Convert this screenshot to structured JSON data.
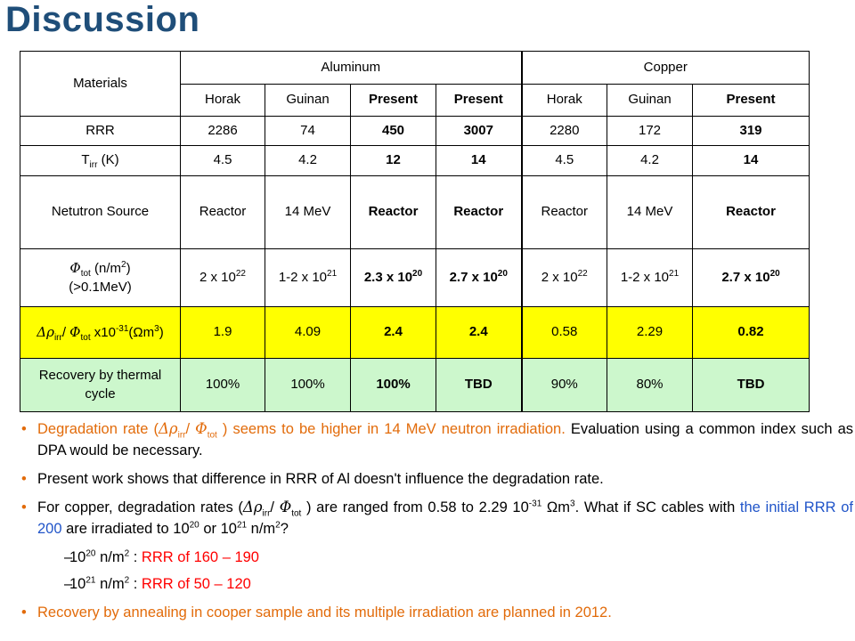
{
  "title": "Discussion",
  "table": {
    "materials": "Materials",
    "aluminum": "Aluminum",
    "copper": "Copper",
    "sub_headers": [
      "Horak",
      "Guinan",
      "Present",
      "Present",
      "Horak",
      "Guinan",
      "Present"
    ],
    "rrr_label": "RRR",
    "rrr": [
      "2286",
      "74",
      "450",
      "3007",
      "2280",
      "172",
      "319"
    ],
    "tirr_label_pre": "T",
    "tirr_label_sub": "irr",
    "tirr_label_post": " (K)",
    "tirr": [
      "4.5",
      "4.2",
      "12",
      "14",
      "4.5",
      "4.2",
      "14"
    ],
    "source_label": "Netutron Source",
    "source": [
      "Reactor",
      "14 MeV",
      "Reactor",
      "Reactor",
      "Reactor",
      "14 MeV",
      "Reactor"
    ],
    "phi_label_phi": "Φ",
    "phi_label_sub": "tot",
    "phi_label_mid": " (n/m",
    "phi_label_sup": "2",
    "phi_label_end": ")",
    "phi_label_line2": "(>0.1MeV)",
    "phi": [
      {
        "base": "2 x 10",
        "exp": "22"
      },
      {
        "base": "1-2 x 10",
        "exp": "21"
      },
      {
        "base": "2.3 x 10",
        "exp": "20"
      },
      {
        "base": "2.7 x 10",
        "exp": "20"
      },
      {
        "base": "2 x 10",
        "exp": "22"
      },
      {
        "base": "1-2 x 10",
        "exp": "21"
      },
      {
        "base": "2.7 x 10",
        "exp": "20"
      }
    ],
    "rate_label_drho": "Δρ",
    "rate_label_sub1": "irr",
    "rate_label_slash": "/ ",
    "rate_label_phi": "Φ",
    "rate_label_sub2": "tot",
    "rate_label_x": " x10",
    "rate_label_sup": "-31",
    "rate_label_unit": "(Ωm",
    "rate_label_sup2": "3",
    "rate_label_close": ")",
    "rate": [
      "1.9",
      "4.09",
      "2.4",
      "2.4",
      "0.58",
      "2.29",
      "0.82"
    ],
    "recovery_label": "Recovery by thermal cycle",
    "recovery": [
      "100%",
      "100%",
      "100%",
      "TBD",
      "90%",
      "80%",
      "TBD"
    ]
  },
  "bullets": {
    "b1_pre": "Degradation rate (",
    "b1_drho": "Δρ",
    "b1_sub1": "irr",
    "b1_slash": "/ ",
    "b1_phi": "Φ",
    "b1_sub2": "tot",
    "b1_post": " ) seems to be higher in 14 MeV neutron irradiation.",
    "b1_rest": " Evaluation using a common index such as DPA would be necessary.",
    "b2": "Present work shows that difference in RRR of Al doesn't influence the degradation rate.",
    "b3_pre": "For copper, degradation rates (",
    "b3_drho": "Δρ",
    "b3_sub1": "irr",
    "b3_slash": "/ ",
    "b3_phi": "Φ",
    "b3_sub2": "tot",
    "b3_mid": " ) are ranged from 0.58 to 2.29 10",
    "b3_sup": "-31",
    "b3_unit": " Ωm",
    "b3_sup2": "3",
    "b3_after": ". What if SC cables with ",
    "b3_blue": "the initial RRR of 200",
    "b3_end1": " are irradiated to 10",
    "b3_sup3": "20",
    "b3_end2": " or 10",
    "b3_sup4": "21",
    "b3_end3": " n/m",
    "b3_sup5": "2",
    "b3_end4": "?",
    "s1_pre": "10",
    "s1_sup": "20",
    "s1_mid": " n/m",
    "s1_sup2": "2",
    "s1_colon": " : ",
    "s1_red": "RRR of 160 – 190",
    "s2_pre": "10",
    "s2_sup": "21",
    "s2_mid": " n/m",
    "s2_sup2": "2",
    "s2_colon": " : ",
    "s2_red": "RRR of 50 – 120",
    "b4": "Recovery by annealing in cooper sample and its multiple irradiation are planned in 2012.",
    "dash": "–",
    "bullet": "•"
  },
  "colors": {
    "title": "#1f4e79",
    "present": "#2155c9",
    "orange": "#e26b0a",
    "red": "#ff0000",
    "yellow_row": "#ffff00",
    "green_row": "#ccf7cc"
  }
}
